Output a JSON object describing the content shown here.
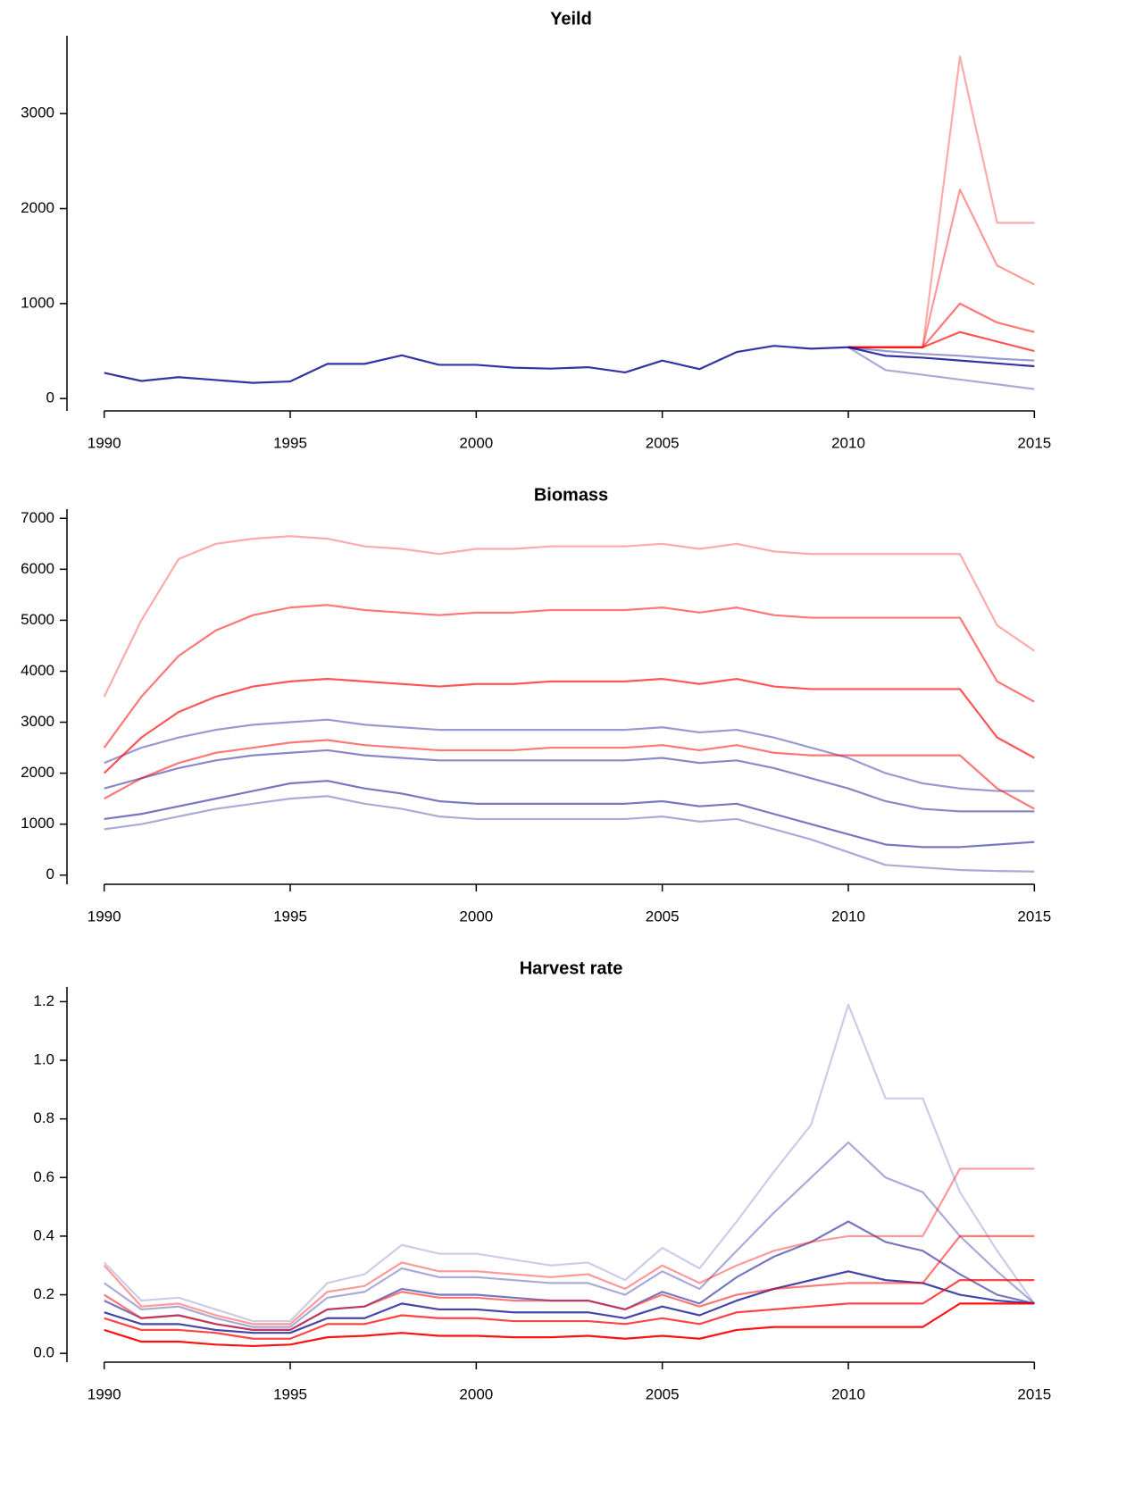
{
  "chart_data": [
    {
      "type": "line",
      "title": "Yeild",
      "x": [
        1990,
        1991,
        1992,
        1993,
        1994,
        1995,
        1996,
        1997,
        1998,
        1999,
        2000,
        2001,
        2002,
        2003,
        2004,
        2005,
        2006,
        2007,
        2008,
        2009,
        2010,
        2011,
        2012,
        2013,
        2014,
        2015
      ],
      "xlim": [
        1989,
        2016
      ],
      "xticks": [
        1990,
        1995,
        2000,
        2005,
        2010,
        2015
      ],
      "ylim": [
        -130,
        3820
      ],
      "yticks": [
        0,
        1000,
        2000,
        3000
      ],
      "series": [
        {
          "color": "#ff000055",
          "values": [
            null,
            null,
            null,
            null,
            null,
            null,
            null,
            null,
            null,
            null,
            null,
            null,
            null,
            null,
            null,
            null,
            null,
            null,
            null,
            null,
            540,
            540,
            540,
            3600,
            1850,
            1850
          ]
        },
        {
          "color": "#ff000066",
          "values": [
            null,
            null,
            null,
            null,
            null,
            null,
            null,
            null,
            null,
            null,
            null,
            null,
            null,
            null,
            null,
            null,
            null,
            null,
            null,
            null,
            540,
            540,
            540,
            2200,
            1400,
            1200
          ]
        },
        {
          "color": "#ff000088",
          "values": [
            null,
            null,
            null,
            null,
            null,
            null,
            null,
            null,
            null,
            null,
            null,
            null,
            null,
            null,
            null,
            null,
            null,
            null,
            null,
            null,
            540,
            540,
            540,
            1000,
            800,
            700
          ]
        },
        {
          "color": "#ff0000aa",
          "values": [
            null,
            null,
            null,
            null,
            null,
            null,
            null,
            null,
            null,
            null,
            null,
            null,
            null,
            null,
            null,
            null,
            null,
            null,
            null,
            null,
            540,
            540,
            540,
            700,
            600,
            500
          ]
        },
        {
          "color": "#00008b55",
          "values": [
            null,
            null,
            null,
            null,
            null,
            null,
            null,
            null,
            null,
            null,
            null,
            null,
            null,
            null,
            null,
            null,
            null,
            null,
            null,
            null,
            540,
            300,
            250,
            200,
            150,
            100
          ]
        },
        {
          "color": "#00008b66",
          "values": [
            null,
            null,
            null,
            null,
            null,
            null,
            null,
            null,
            null,
            null,
            null,
            null,
            null,
            null,
            null,
            null,
            null,
            null,
            null,
            null,
            540,
            500,
            470,
            450,
            420,
            400
          ]
        },
        {
          "color": "#00008bcc",
          "values": [
            270,
            185,
            225,
            195,
            165,
            180,
            365,
            365,
            455,
            355,
            355,
            325,
            315,
            330,
            275,
            400,
            310,
            490,
            555,
            525,
            540,
            450,
            430,
            400,
            370,
            340
          ]
        }
      ]
    },
    {
      "type": "line",
      "title": "Biomass",
      "x": [
        1990,
        1991,
        1992,
        1993,
        1994,
        1995,
        1996,
        1997,
        1998,
        1999,
        2000,
        2001,
        2002,
        2003,
        2004,
        2005,
        2006,
        2007,
        2008,
        2009,
        2010,
        2011,
        2012,
        2013,
        2014,
        2015
      ],
      "xlim": [
        1989,
        2016
      ],
      "xticks": [
        1990,
        1995,
        2000,
        2005,
        2010,
        2015
      ],
      "ylim": [
        -180,
        7180
      ],
      "yticks": [
        0,
        1000,
        2000,
        3000,
        4000,
        5000,
        6000,
        7000
      ],
      "series": [
        {
          "color": "#00008b66",
          "values": [
            2200,
            2500,
            2700,
            2850,
            2950,
            3000,
            3050,
            2950,
            2900,
            2850,
            2850,
            2850,
            2850,
            2850,
            2850,
            2900,
            2800,
            2850,
            2700,
            2500,
            2300,
            2000,
            1800,
            1700,
            1650,
            1650
          ]
        },
        {
          "color": "#00008b77",
          "values": [
            1700,
            1900,
            2100,
            2250,
            2350,
            2400,
            2450,
            2350,
            2300,
            2250,
            2250,
            2250,
            2250,
            2250,
            2250,
            2300,
            2200,
            2250,
            2100,
            1900,
            1700,
            1450,
            1300,
            1250,
            1250,
            1250
          ]
        },
        {
          "color": "#00008b88",
          "values": [
            1100,
            1200,
            1350,
            1500,
            1650,
            1800,
            1850,
            1700,
            1600,
            1450,
            1400,
            1400,
            1400,
            1400,
            1400,
            1450,
            1350,
            1400,
            1200,
            1000,
            800,
            600,
            550,
            550,
            600,
            650
          ]
        },
        {
          "color": "#00008b55",
          "values": [
            900,
            1000,
            1150,
            1300,
            1400,
            1500,
            1550,
            1400,
            1300,
            1150,
            1100,
            1100,
            1100,
            1100,
            1100,
            1150,
            1050,
            1100,
            900,
            700,
            450,
            200,
            150,
            100,
            80,
            70
          ]
        },
        {
          "color": "#ff000055",
          "values": [
            3500,
            5000,
            6200,
            6500,
            6600,
            6650,
            6600,
            6450,
            6400,
            6300,
            6400,
            6400,
            6450,
            6450,
            6450,
            6500,
            6400,
            6500,
            6350,
            6300,
            6300,
            6300,
            6300,
            6300,
            4900,
            4400
          ]
        },
        {
          "color": "#ff000088",
          "values": [
            2500,
            3500,
            4300,
            4800,
            5100,
            5250,
            5300,
            5200,
            5150,
            5100,
            5150,
            5150,
            5200,
            5200,
            5200,
            5250,
            5150,
            5250,
            5100,
            5050,
            5050,
            5050,
            5050,
            5050,
            3800,
            3400
          ]
        },
        {
          "color": "#ff0000aa",
          "values": [
            2000,
            2700,
            3200,
            3500,
            3700,
            3800,
            3850,
            3800,
            3750,
            3700,
            3750,
            3750,
            3800,
            3800,
            3800,
            3850,
            3750,
            3850,
            3700,
            3650,
            3650,
            3650,
            3650,
            3650,
            2700,
            2300
          ]
        },
        {
          "color": "#ff000088",
          "values": [
            1500,
            1900,
            2200,
            2400,
            2500,
            2600,
            2650,
            2550,
            2500,
            2450,
            2450,
            2450,
            2500,
            2500,
            2500,
            2550,
            2450,
            2550,
            2400,
            2350,
            2350,
            2350,
            2350,
            2350,
            1700,
            1300
          ]
        }
      ]
    },
    {
      "type": "line",
      "title": "Harvest rate",
      "x": [
        1990,
        1991,
        1992,
        1993,
        1994,
        1995,
        1996,
        1997,
        1998,
        1999,
        2000,
        2001,
        2002,
        2003,
        2004,
        2005,
        2006,
        2007,
        2008,
        2009,
        2010,
        2011,
        2012,
        2013,
        2014,
        2015
      ],
      "xlim": [
        1989,
        2016
      ],
      "xticks": [
        1990,
        1995,
        2000,
        2005,
        2010,
        2015
      ],
      "ylim": [
        -0.03,
        1.25
      ],
      "yticks": [
        {
          "value": 0,
          "label": "0.0"
        },
        0.2,
        0.4,
        0.6,
        0.8,
        {
          "value": 1,
          "label": "1.0"
        },
        1.2
      ],
      "series": [
        {
          "color": "#00008b33",
          "values": [
            0.31,
            0.18,
            0.19,
            0.15,
            0.11,
            0.11,
            0.24,
            0.27,
            0.37,
            0.34,
            0.34,
            0.32,
            0.3,
            0.31,
            0.25,
            0.36,
            0.29,
            0.45,
            0.62,
            0.78,
            1.19,
            0.87,
            0.87,
            0.55,
            0.35,
            0.17
          ]
        },
        {
          "color": "#00008b55",
          "values": [
            0.24,
            0.15,
            0.16,
            0.12,
            0.09,
            0.09,
            0.19,
            0.21,
            0.29,
            0.26,
            0.26,
            0.25,
            0.24,
            0.24,
            0.2,
            0.28,
            0.22,
            0.35,
            0.48,
            0.6,
            0.72,
            0.6,
            0.55,
            0.4,
            0.28,
            0.17
          ]
        },
        {
          "color": "#00008b88",
          "values": [
            0.18,
            0.12,
            0.13,
            0.1,
            0.08,
            0.08,
            0.15,
            0.16,
            0.22,
            0.2,
            0.2,
            0.19,
            0.18,
            0.18,
            0.15,
            0.21,
            0.17,
            0.26,
            0.33,
            0.38,
            0.45,
            0.38,
            0.35,
            0.27,
            0.2,
            0.17
          ]
        },
        {
          "color": "#00008bbb",
          "values": [
            0.14,
            0.1,
            0.1,
            0.08,
            0.07,
            0.07,
            0.12,
            0.12,
            0.17,
            0.15,
            0.15,
            0.14,
            0.14,
            0.14,
            0.12,
            0.16,
            0.13,
            0.18,
            0.22,
            0.25,
            0.28,
            0.25,
            0.24,
            0.2,
            0.18,
            0.17
          ]
        },
        {
          "color": "#ff000066",
          "values": [
            0.3,
            0.16,
            0.17,
            0.13,
            0.1,
            0.1,
            0.21,
            0.23,
            0.31,
            0.28,
            0.28,
            0.27,
            0.26,
            0.27,
            0.22,
            0.3,
            0.24,
            0.3,
            0.35,
            0.38,
            0.4,
            0.4,
            0.4,
            0.63,
            0.63,
            0.63
          ]
        },
        {
          "color": "#ff000088",
          "values": [
            0.2,
            0.12,
            0.13,
            0.1,
            0.08,
            0.08,
            0.15,
            0.16,
            0.21,
            0.19,
            0.19,
            0.18,
            0.18,
            0.18,
            0.15,
            0.2,
            0.16,
            0.2,
            0.22,
            0.23,
            0.24,
            0.24,
            0.24,
            0.4,
            0.4,
            0.4
          ]
        },
        {
          "color": "#ff0000bb",
          "values": [
            0.12,
            0.08,
            0.08,
            0.07,
            0.05,
            0.05,
            0.1,
            0.1,
            0.13,
            0.12,
            0.12,
            0.11,
            0.11,
            0.11,
            0.1,
            0.12,
            0.1,
            0.14,
            0.15,
            0.16,
            0.17,
            0.17,
            0.17,
            0.25,
            0.25,
            0.25
          ]
        },
        {
          "color": "#ff0000ee",
          "values": [
            0.08,
            0.04,
            0.04,
            0.03,
            0.025,
            0.03,
            0.055,
            0.06,
            0.07,
            0.06,
            0.06,
            0.055,
            0.055,
            0.06,
            0.05,
            0.06,
            0.05,
            0.08,
            0.09,
            0.09,
            0.09,
            0.09,
            0.09,
            0.17,
            0.17,
            0.17
          ]
        }
      ]
    }
  ]
}
